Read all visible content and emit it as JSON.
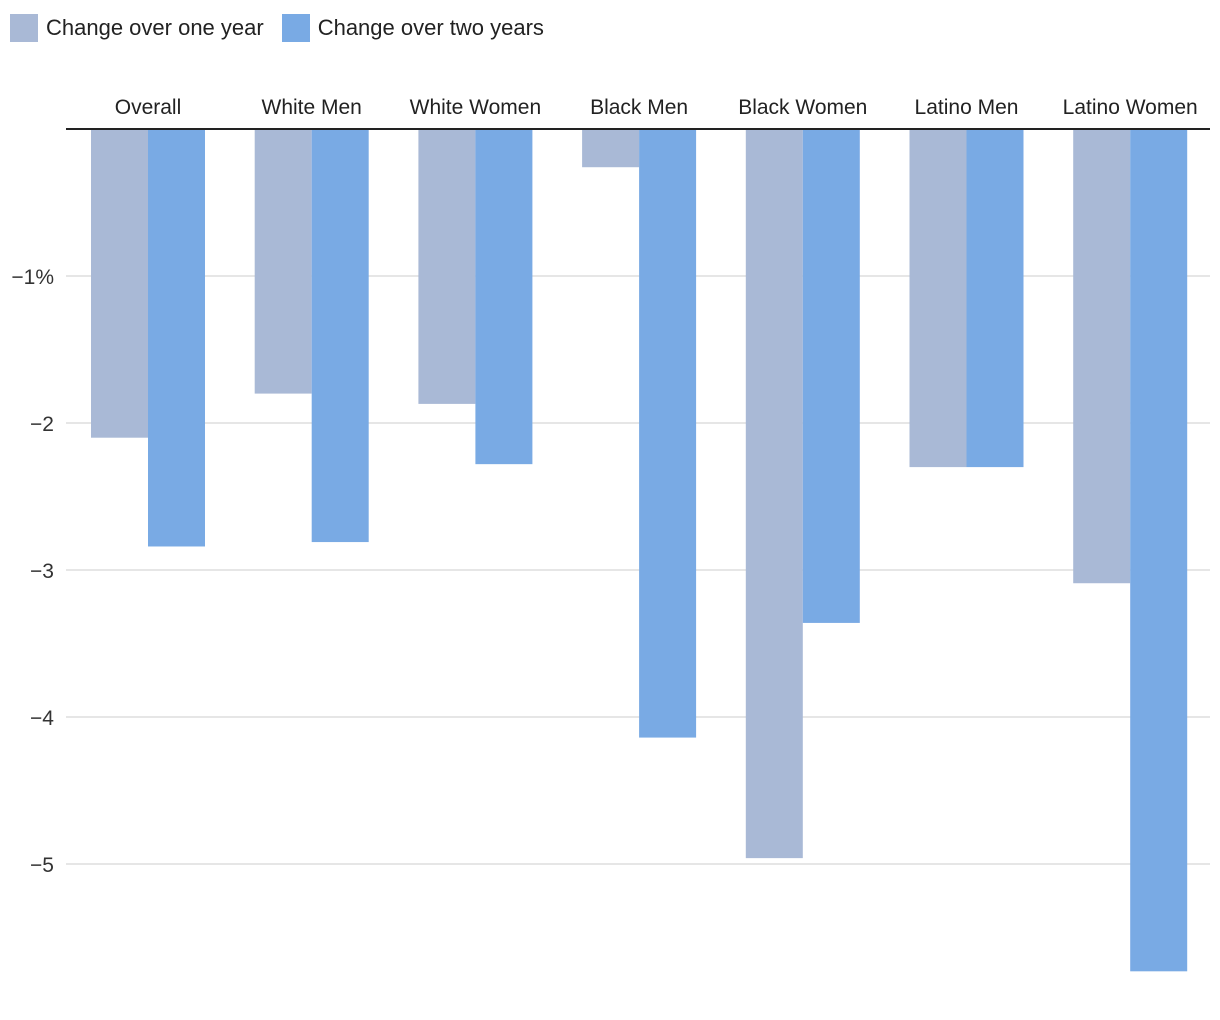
{
  "chart_data": {
    "type": "bar",
    "orientation": "vertical",
    "categories": [
      "Overall",
      "White Men",
      "White Women",
      "Black Men",
      "Black Women",
      "Latino Men",
      "Latino Women"
    ],
    "series": [
      {
        "name": "Change over one year",
        "color": "#a9b9d6",
        "values": [
          -2.1,
          -1.8,
          -1.87,
          -0.26,
          -4.96,
          -2.3,
          -3.09
        ]
      },
      {
        "name": "Change over two years",
        "color": "#79aae4",
        "values": [
          -2.84,
          -2.81,
          -2.28,
          -4.14,
          -3.36,
          -2.3,
          -5.73
        ]
      }
    ],
    "y_ticks": [
      {
        "value": -1,
        "label": "−1%"
      },
      {
        "value": -2,
        "label": "−2"
      },
      {
        "value": -3,
        "label": "−3"
      },
      {
        "value": -4,
        "label": "−4"
      },
      {
        "value": -5,
        "label": "−5"
      }
    ],
    "ylim": [
      -5.85,
      0
    ],
    "category_axis_position": "top",
    "legend_position": "top-left",
    "grid": true
  }
}
